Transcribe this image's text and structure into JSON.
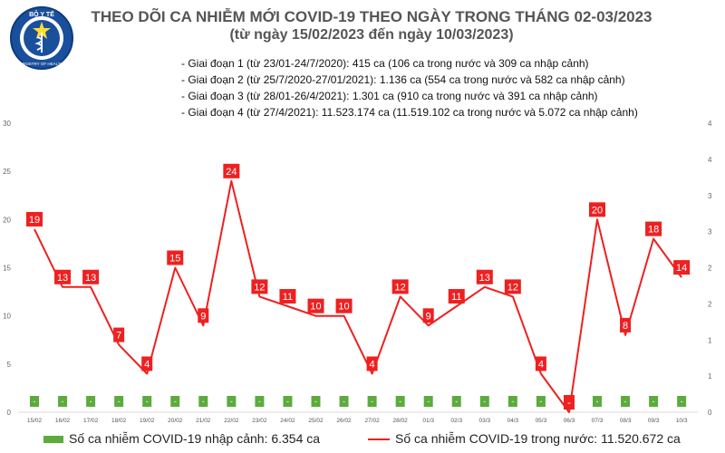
{
  "header": {
    "title": "THEO DÕI CA NHIỄM MỚI COVID-19 THEO NGÀY TRONG THÁNG 02-03/2023",
    "subtitle": "(từ ngày 15/02/2023 đến ngày 10/03/2023)",
    "logo_text": "BỘ Y TẾ",
    "logo_bottom_text": "MINISTRY OF HEALTH"
  },
  "phases": [
    "- Giai đoạn 1 (từ 23/01-24/7/2020): 415 ca (106 ca trong nước và 309 ca nhập cảnh)",
    "- Giai đoạn 2 (từ 25/7/2020-27/01/2021): 1.136 ca (554 ca trong nước và 582 ca nhập cảnh)",
    "- Giai đoạn 3 (từ 28/01-26/4/2021): 1.301 ca (910 ca trong nước và 391 ca nhập cảnh)",
    "- Giai đoạn 4 (từ 27/4/2021): 11.523.174 ca (11.519.102 ca trong nước và 5.072 ca nhập cảnh)"
  ],
  "legend": {
    "imported": "Số ca nhiễm COVID-19 nhập cảnh: 6.354 ca",
    "domestic": "Số ca nhiễm COVID-19 trong nước: 11.520.672 ca"
  },
  "colors": {
    "line": "#ee2020",
    "bar": "#5cab3d",
    "title": "#555555"
  },
  "chart_data": {
    "type": "line",
    "categories": [
      "15/02",
      "16/02",
      "17/02",
      "18/02",
      "19/02",
      "20/02",
      "21/02",
      "22/02",
      "23/02",
      "24/02",
      "25/02",
      "26/02",
      "27/02",
      "28/02",
      "01/3",
      "02/3",
      "03/3",
      "04/3",
      "05/3",
      "06/3",
      "07/3",
      "08/3",
      "09/3",
      "10/3"
    ],
    "series": [
      {
        "name": "Số ca nhiễm COVID-19 trong nước: 11.520.672 ca",
        "axis": "left",
        "type": "line",
        "values": [
          19,
          13,
          13,
          7,
          4,
          15,
          9,
          24,
          12,
          11,
          10,
          10,
          4,
          12,
          9,
          11,
          13,
          12,
          4,
          0,
          20,
          8,
          18,
          14
        ],
        "labels": [
          "19",
          "13",
          "13",
          "7",
          "4",
          "15",
          "9",
          "24",
          "12",
          "11",
          "10",
          "10",
          "4",
          "12",
          "9",
          "11",
          "13",
          "12",
          "4",
          "-",
          "20",
          "8",
          "18",
          "14"
        ]
      },
      {
        "name": "Số ca nhiễm COVID-19 nhập cảnh: 6.354 ca",
        "axis": "right",
        "type": "bar",
        "values": [
          0,
          0,
          0,
          0,
          0,
          0,
          0,
          0,
          0,
          0,
          0,
          0,
          0,
          0,
          0,
          0,
          0,
          0,
          0,
          0,
          0,
          0,
          0,
          0
        ],
        "labels": [
          "-",
          "-",
          "-",
          "-",
          "-",
          "-",
          "-",
          "-",
          "-",
          "-",
          "-",
          "-",
          "-",
          "-",
          "-",
          "-",
          "-",
          "-",
          "-",
          "-",
          "-",
          "-",
          "-",
          "-"
        ]
      }
    ],
    "y_left": {
      "min": 0,
      "max": 30,
      "ticks": [
        "0",
        "5",
        "10",
        "15",
        "20",
        "25",
        "30"
      ]
    },
    "y_right": {
      "min": 0,
      "max": 4,
      "ticks": [
        "0",
        "1",
        "1",
        "2",
        "2",
        "3",
        "3",
        "4",
        "4"
      ]
    },
    "grid": false,
    "legend_position": "bottom"
  }
}
